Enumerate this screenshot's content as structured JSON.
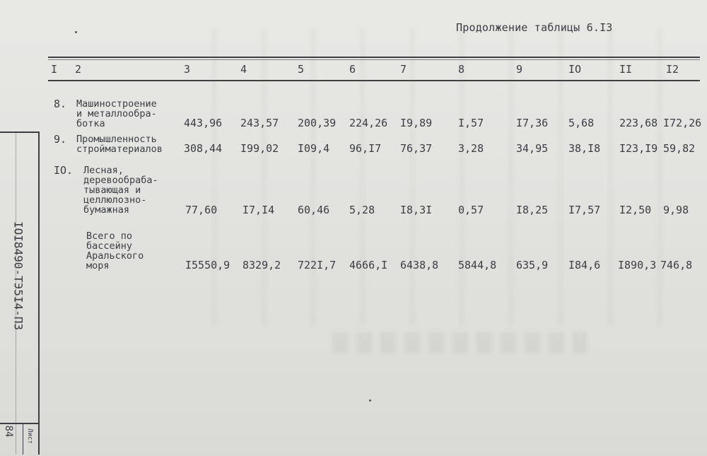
{
  "caption": "Продолжение таблицы 6.I3",
  "headers": [
    "I",
    "2",
    "3",
    "4",
    "5",
    "6",
    "7",
    "8",
    "9",
    "IO",
    "II",
    "I2"
  ],
  "rows": [
    {
      "num": "8.",
      "label": "Машиностроение\nи металлообра-\nботка",
      "values": [
        "443,96",
        "243,57",
        "200,39",
        "224,26",
        "I9,89",
        "I,57",
        "I7,36",
        "5,68",
        "223,68",
        "I72,26"
      ]
    },
    {
      "num": "9.",
      "label": "Промышленность\nстройматериалов",
      "values": [
        "308,44",
        "I99,02",
        "I09,4",
        "96,I7",
        "76,37",
        "3,28",
        "34,95",
        "38,I8",
        "I23,I9",
        "59,82"
      ]
    },
    {
      "num": "IO.",
      "label": "Лесная,\nдеревообраба-\nтывающая и\nцеллюлозно-\nбумажная",
      "values": [
        "77,60",
        "I7,I4",
        "60,46",
        "5,28",
        "I8,3I",
        "0,57",
        "I8,25",
        "I7,57",
        "I2,50",
        "9,98"
      ]
    },
    {
      "num": "",
      "label": "Всего по\nбассейну\nАральского\nморя",
      "values": [
        "I5550,9",
        "8329,2",
        "722I,7",
        "4666,I",
        "6438,8",
        "5844,8",
        "635,9",
        "I84,6",
        "I890,3",
        "746,8"
      ]
    }
  ],
  "margin": {
    "doc_code": "IOI8490-ТЭ5I4-ПЗ",
    "sheet_label": "Лист",
    "sheet_number": "84"
  }
}
